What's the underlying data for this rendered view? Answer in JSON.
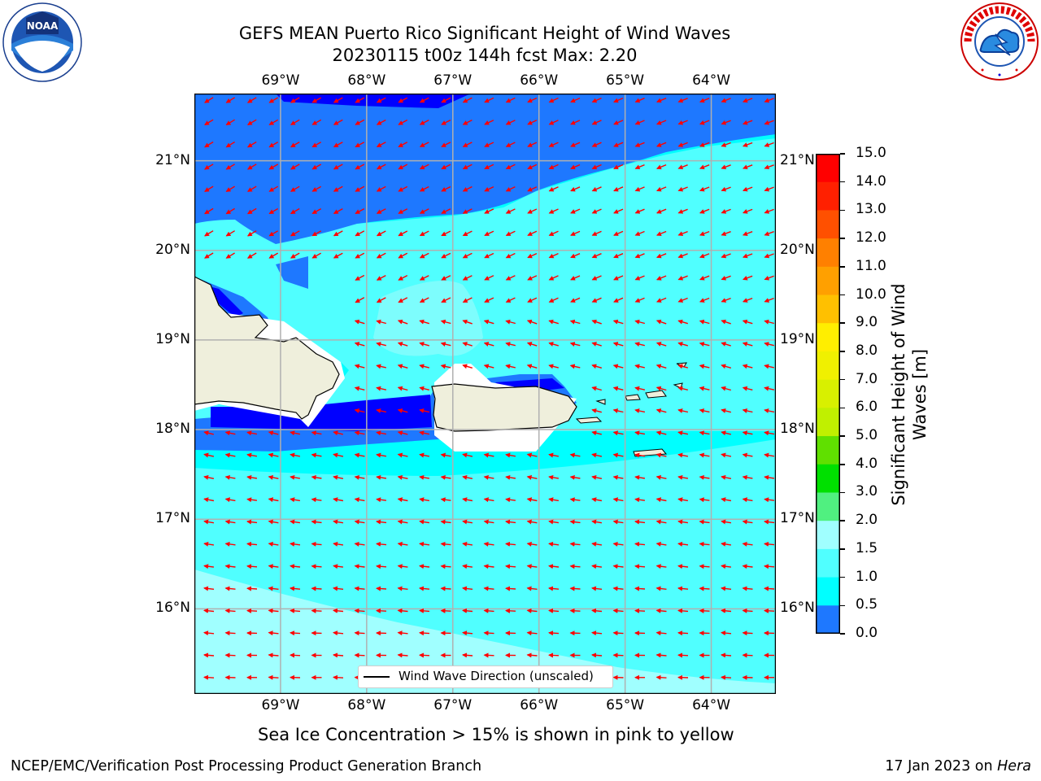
{
  "header": {
    "title_line1": "GEFS MEAN Puerto Rico Significant Height of Wind Waves",
    "title_line2": "20230115 t00z 144h fcst   Max: 2.20"
  },
  "logos": {
    "left": {
      "name": "NOAA",
      "text": "NOAA",
      "ring_text": "NATIONAL OCEANIC AND ATMOSPHERIC ADMINISTRATION · U.S. DEPARTMENT OF COMMERCE"
    },
    "right": {
      "name": "National Weather Service",
      "ring_text": "NATIONAL WEATHER SERVICE"
    }
  },
  "map": {
    "lon_labels": [
      "69°W",
      "68°W",
      "67°W",
      "66°W",
      "65°W",
      "64°W"
    ],
    "lat_labels": [
      "21°N",
      "20°N",
      "19°N",
      "18°N",
      "17°N",
      "16°N"
    ],
    "lon_values": [
      -69,
      -68,
      -67,
      -66,
      -65,
      -64
    ],
    "lat_values": [
      21,
      20,
      19,
      18,
      17,
      16
    ],
    "extent": {
      "lon_min": -70,
      "lon_max": -63.25,
      "lat_min": 15.05,
      "lat_max": 21.75
    },
    "legend_label": "Wind Wave Direction (unscaled)",
    "arrow_color": "#ff0000",
    "land_color": "#efefdc",
    "grid_color": "#b0b0b0"
  },
  "colorbar": {
    "label": "Significant Height of Wind Waves [m]",
    "ticks": [
      "15.0",
      "14.0",
      "13.0",
      "12.0",
      "11.0",
      "10.0",
      "9.0",
      "8.0",
      "7.0",
      "6.0",
      "5.0",
      "4.0",
      "3.0",
      "2.0",
      "1.5",
      "1.0",
      "0.5",
      "0.0"
    ],
    "colors_top_to_bottom": [
      "#ff0000",
      "#ff2000",
      "#ff5000",
      "#ff8000",
      "#ffa000",
      "#ffc000",
      "#ffee00",
      "#f0f000",
      "#d8f000",
      "#c0f000",
      "#60e000",
      "#00e000",
      "#50f080",
      "#a0ffff",
      "#50ffff",
      "#00ffff",
      "#1e78ff",
      "#0000ff"
    ]
  },
  "captions": {
    "sea_ice": "Sea Ice Concentration > 15% is shown in pink to yellow",
    "footer_left": "NCEP/EMC/Verification Post Processing Product Generation Branch",
    "footer_right_prefix": "17 Jan 2023 on ",
    "footer_right_host": "Hera"
  }
}
